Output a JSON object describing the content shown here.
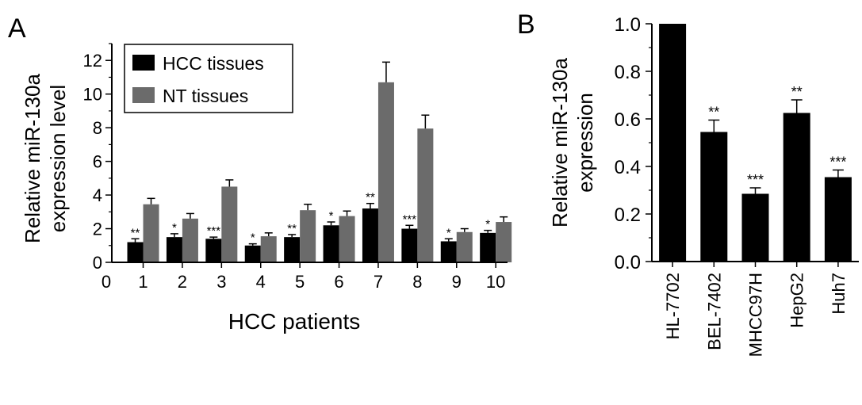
{
  "panel_labels": [
    "A",
    "B"
  ],
  "chart_data": [
    {
      "type": "bar",
      "panel": "A",
      "title": "",
      "xlabel": "HCC patients",
      "ylabel_lines": [
        "Relative miR-130a",
        "expression level"
      ],
      "ylim": [
        0,
        13
      ],
      "yticks": [
        "0",
        "2",
        "4",
        "6",
        "8",
        "10",
        "12"
      ],
      "x_origin_label": "0",
      "categories": [
        "1",
        "2",
        "3",
        "4",
        "5",
        "6",
        "7",
        "8",
        "9",
        "10"
      ],
      "series": [
        {
          "name": "HCC tissues",
          "color": "#000000",
          "values": [
            1.2,
            1.5,
            1.4,
            1.0,
            1.5,
            2.2,
            3.2,
            2.0,
            1.25,
            1.75
          ],
          "errors": [
            0.2,
            0.2,
            0.1,
            0.1,
            0.15,
            0.2,
            0.3,
            0.2,
            0.15,
            0.15
          ],
          "annotations": [
            "**",
            "*",
            "***",
            "*",
            "**",
            "*",
            "**",
            "***",
            "*",
            "*"
          ]
        },
        {
          "name": "NT tissues",
          "color": "#6b6b6b",
          "values": [
            3.45,
            2.6,
            4.5,
            1.55,
            3.1,
            2.75,
            10.7,
            7.95,
            1.8,
            2.4
          ],
          "errors": [
            0.35,
            0.3,
            0.4,
            0.2,
            0.35,
            0.3,
            1.2,
            0.8,
            0.2,
            0.3
          ]
        }
      ],
      "legend_position": "top-left",
      "grid": false
    },
    {
      "type": "bar",
      "panel": "B",
      "title": "",
      "ylabel_lines": [
        "Relative miR-130a",
        "expression"
      ],
      "ylim": [
        0,
        1.0
      ],
      "yticks": [
        "0.0",
        "0.2",
        "0.4",
        "0.6",
        "0.8",
        "1.0"
      ],
      "categories": [
        "HL-7702",
        "BEL-7402",
        "MHCC97H",
        "HepG2",
        "Huh7"
      ],
      "values": [
        1.0,
        0.545,
        0.285,
        0.625,
        0.355
      ],
      "errors": [
        0,
        0.05,
        0.025,
        0.055,
        0.03
      ],
      "annotations": [
        "",
        "**",
        "***",
        "**",
        "***"
      ],
      "color": "#000000",
      "grid": false
    }
  ]
}
